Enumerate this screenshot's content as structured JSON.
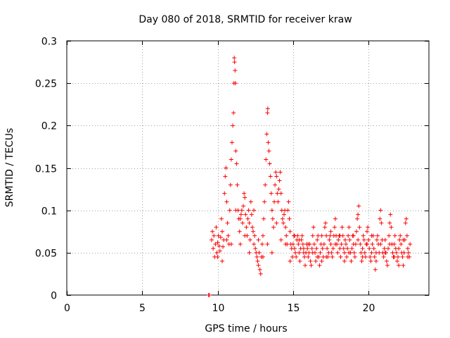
{
  "chart_data": {
    "type": "scatter",
    "title": "Day 080 of 2018, SRMTID for receiver kraw",
    "xlabel": "GPS time / hours",
    "ylabel": "SRMTID / TECUs",
    "xlim": [
      0,
      24
    ],
    "ylim": [
      0,
      0.3
    ],
    "x_ticks": [
      0,
      5,
      10,
      15,
      20
    ],
    "x_tick_labels": [
      "0",
      "5",
      "10",
      "15",
      "20"
    ],
    "y_ticks": [
      0,
      0.05,
      0.1,
      0.15,
      0.2,
      0.25,
      0.3
    ],
    "y_tick_labels": [
      "0",
      "0.05",
      "0.1",
      "0.15",
      "0.2",
      "0.25",
      "0.3"
    ],
    "grid": true,
    "marker": "plus",
    "series": [
      {
        "name": "SRMTID",
        "color": "#ff0000",
        "points": [
          [
            9.4,
            0.0
          ],
          [
            9.45,
            0.0
          ],
          [
            9.6,
            0.065
          ],
          [
            9.65,
            0.075
          ],
          [
            9.7,
            0.055
          ],
          [
            9.75,
            0.07
          ],
          [
            9.8,
            0.045
          ],
          [
            9.85,
            0.06
          ],
          [
            9.9,
            0.08
          ],
          [
            9.95,
            0.05
          ],
          [
            10.0,
            0.062
          ],
          [
            10.05,
            0.07
          ],
          [
            10.1,
            0.058
          ],
          [
            10.15,
            0.052
          ],
          [
            10.2,
            0.068
          ],
          [
            10.25,
            0.09
          ],
          [
            10.3,
            0.04
          ],
          [
            10.35,
            0.057
          ],
          [
            10.4,
            0.065
          ],
          [
            10.45,
            0.12
          ],
          [
            10.5,
            0.14
          ],
          [
            10.55,
            0.15
          ],
          [
            10.6,
            0.11
          ],
          [
            10.65,
            0.085
          ],
          [
            10.7,
            0.07
          ],
          [
            10.75,
            0.06
          ],
          [
            10.8,
            0.1
          ],
          [
            10.85,
            0.13
          ],
          [
            10.9,
            0.16
          ],
          [
            10.95,
            0.18
          ],
          [
            11.0,
            0.2
          ],
          [
            11.05,
            0.215
          ],
          [
            11.08,
            0.25
          ],
          [
            11.1,
            0.28
          ],
          [
            11.12,
            0.275
          ],
          [
            11.15,
            0.265
          ],
          [
            11.18,
            0.25
          ],
          [
            11.2,
            0.17
          ],
          [
            11.25,
            0.155
          ],
          [
            11.3,
            0.13
          ],
          [
            11.35,
            0.1
          ],
          [
            11.4,
            0.09
          ],
          [
            11.45,
            0.075
          ],
          [
            11.5,
            0.06
          ],
          [
            11.55,
            0.095
          ],
          [
            11.6,
            0.1
          ],
          [
            11.65,
            0.085
          ],
          [
            11.7,
            0.105
          ],
          [
            11.75,
            0.12
          ],
          [
            11.8,
            0.115
          ],
          [
            11.85,
            0.095
          ],
          [
            11.9,
            0.08
          ],
          [
            11.95,
            0.07
          ],
          [
            12.0,
            0.09
          ],
          [
            12.05,
            0.1
          ],
          [
            12.1,
            0.085
          ],
          [
            12.15,
            0.065
          ],
          [
            12.2,
            0.11
          ],
          [
            12.25,
            0.095
          ],
          [
            12.3,
            0.08
          ],
          [
            12.35,
            0.075
          ],
          [
            12.4,
            0.06
          ],
          [
            12.45,
            0.07
          ],
          [
            12.5,
            0.055
          ],
          [
            12.55,
            0.05
          ],
          [
            12.6,
            0.045
          ],
          [
            12.65,
            0.04
          ],
          [
            12.7,
            0.035
          ],
          [
            12.75,
            0.05
          ],
          [
            12.8,
            0.03
          ],
          [
            12.85,
            0.025
          ],
          [
            12.9,
            0.045
          ],
          [
            12.95,
            0.06
          ],
          [
            13.0,
            0.07
          ],
          [
            13.05,
            0.09
          ],
          [
            13.1,
            0.11
          ],
          [
            13.15,
            0.13
          ],
          [
            13.2,
            0.16
          ],
          [
            13.25,
            0.19
          ],
          [
            13.3,
            0.215
          ],
          [
            13.32,
            0.22
          ],
          [
            13.35,
            0.18
          ],
          [
            13.4,
            0.17
          ],
          [
            13.45,
            0.155
          ],
          [
            13.5,
            0.14
          ],
          [
            13.55,
            0.12
          ],
          [
            13.6,
            0.1
          ],
          [
            13.65,
            0.09
          ],
          [
            13.7,
            0.08
          ],
          [
            13.75,
            0.11
          ],
          [
            13.8,
            0.13
          ],
          [
            13.85,
            0.145
          ],
          [
            13.9,
            0.14
          ],
          [
            13.95,
            0.12
          ],
          [
            14.0,
            0.11
          ],
          [
            14.05,
            0.125
          ],
          [
            14.1,
            0.135
          ],
          [
            14.15,
            0.145
          ],
          [
            14.2,
            0.12
          ],
          [
            14.25,
            0.1
          ],
          [
            14.3,
            0.09
          ],
          [
            14.35,
            0.085
          ],
          [
            14.4,
            0.095
          ],
          [
            14.45,
            0.1
          ],
          [
            14.5,
            0.08
          ],
          [
            14.55,
            0.07
          ],
          [
            14.6,
            0.06
          ],
          [
            14.65,
            0.1
          ],
          [
            14.7,
            0.11
          ],
          [
            14.75,
            0.09
          ],
          [
            14.8,
            0.075
          ],
          [
            14.85,
            0.06
          ],
          [
            14.9,
            0.055
          ],
          [
            14.95,
            0.045
          ],
          [
            15.0,
            0.06
          ],
          [
            15.05,
            0.07
          ],
          [
            15.1,
            0.055
          ],
          [
            15.15,
            0.05
          ],
          [
            15.2,
            0.045
          ],
          [
            15.25,
            0.065
          ],
          [
            15.3,
            0.07
          ],
          [
            15.35,
            0.06
          ],
          [
            15.4,
            0.05
          ],
          [
            15.45,
            0.04
          ],
          [
            15.5,
            0.055
          ],
          [
            15.55,
            0.065
          ],
          [
            15.6,
            0.07
          ],
          [
            15.65,
            0.06
          ],
          [
            15.7,
            0.05
          ],
          [
            15.75,
            0.045
          ],
          [
            15.8,
            0.035
          ],
          [
            15.85,
            0.05
          ],
          [
            15.9,
            0.06
          ],
          [
            15.95,
            0.055
          ],
          [
            16.0,
            0.045
          ],
          [
            16.05,
            0.05
          ],
          [
            16.1,
            0.06
          ],
          [
            16.15,
            0.04
          ],
          [
            16.2,
            0.035
          ],
          [
            16.25,
            0.055
          ],
          [
            16.3,
            0.07
          ],
          [
            16.35,
            0.08
          ],
          [
            16.4,
            0.06
          ],
          [
            16.45,
            0.05
          ],
          [
            16.5,
            0.04
          ],
          [
            16.55,
            0.055
          ],
          [
            16.6,
            0.065
          ],
          [
            16.65,
            0.07
          ],
          [
            16.7,
            0.045
          ],
          [
            16.75,
            0.035
          ],
          [
            16.8,
            0.05
          ],
          [
            16.85,
            0.06
          ],
          [
            16.9,
            0.07
          ],
          [
            16.95,
            0.055
          ],
          [
            17.0,
            0.045
          ],
          [
            17.05,
            0.06
          ],
          [
            17.1,
            0.08
          ],
          [
            17.15,
            0.085
          ],
          [
            17.2,
            0.07
          ],
          [
            17.25,
            0.055
          ],
          [
            17.3,
            0.045
          ],
          [
            17.35,
            0.05
          ],
          [
            17.4,
            0.065
          ],
          [
            17.45,
            0.07
          ],
          [
            17.5,
            0.06
          ],
          [
            17.55,
            0.05
          ],
          [
            17.6,
            0.045
          ],
          [
            17.65,
            0.055
          ],
          [
            17.7,
            0.07
          ],
          [
            17.75,
            0.08
          ],
          [
            17.8,
            0.09
          ],
          [
            17.85,
            0.07
          ],
          [
            17.9,
            0.06
          ],
          [
            17.95,
            0.05
          ],
          [
            18.0,
            0.065
          ],
          [
            18.05,
            0.07
          ],
          [
            18.1,
            0.055
          ],
          [
            18.15,
            0.045
          ],
          [
            18.2,
            0.06
          ],
          [
            18.25,
            0.08
          ],
          [
            18.3,
            0.07
          ],
          [
            18.35,
            0.055
          ],
          [
            18.4,
            0.05
          ],
          [
            18.45,
            0.065
          ],
          [
            18.5,
            0.06
          ],
          [
            18.55,
            0.045
          ],
          [
            18.6,
            0.055
          ],
          [
            18.65,
            0.07
          ],
          [
            18.7,
            0.08
          ],
          [
            18.75,
            0.065
          ],
          [
            18.8,
            0.05
          ],
          [
            18.85,
            0.04
          ],
          [
            18.9,
            0.055
          ],
          [
            18.95,
            0.07
          ],
          [
            19.0,
            0.06
          ],
          [
            19.05,
            0.05
          ],
          [
            19.1,
            0.045
          ],
          [
            19.15,
            0.06
          ],
          [
            19.2,
            0.075
          ],
          [
            19.25,
            0.09
          ],
          [
            19.3,
            0.095
          ],
          [
            19.35,
            0.105
          ],
          [
            19.4,
            0.08
          ],
          [
            19.45,
            0.06
          ],
          [
            19.5,
            0.05
          ],
          [
            19.55,
            0.04
          ],
          [
            19.6,
            0.055
          ],
          [
            19.65,
            0.07
          ],
          [
            19.7,
            0.065
          ],
          [
            19.75,
            0.05
          ],
          [
            19.8,
            0.045
          ],
          [
            19.85,
            0.06
          ],
          [
            19.9,
            0.075
          ],
          [
            19.95,
            0.08
          ],
          [
            20.0,
            0.065
          ],
          [
            20.05,
            0.055
          ],
          [
            20.1,
            0.045
          ],
          [
            20.15,
            0.04
          ],
          [
            20.2,
            0.05
          ],
          [
            20.25,
            0.06
          ],
          [
            20.3,
            0.07
          ],
          [
            20.35,
            0.055
          ],
          [
            20.4,
            0.045
          ],
          [
            20.45,
            0.03
          ],
          [
            20.5,
            0.05
          ],
          [
            20.55,
            0.065
          ],
          [
            20.6,
            0.07
          ],
          [
            20.65,
            0.06
          ],
          [
            20.7,
            0.05
          ],
          [
            20.75,
            0.09
          ],
          [
            20.8,
            0.1
          ],
          [
            20.85,
            0.085
          ],
          [
            20.9,
            0.065
          ],
          [
            20.95,
            0.05
          ],
          [
            21.0,
            0.045
          ],
          [
            21.05,
            0.055
          ],
          [
            21.1,
            0.065
          ],
          [
            21.15,
            0.05
          ],
          [
            21.2,
            0.04
          ],
          [
            21.25,
            0.035
          ],
          [
            21.3,
            0.055
          ],
          [
            21.35,
            0.07
          ],
          [
            21.4,
            0.085
          ],
          [
            21.45,
            0.095
          ],
          [
            21.5,
            0.08
          ],
          [
            21.55,
            0.06
          ],
          [
            21.6,
            0.05
          ],
          [
            21.65,
            0.045
          ],
          [
            21.7,
            0.06
          ],
          [
            21.75,
            0.07
          ],
          [
            21.8,
            0.055
          ],
          [
            21.85,
            0.05
          ],
          [
            21.9,
            0.04
          ],
          [
            21.95,
            0.045
          ],
          [
            22.0,
            0.055
          ],
          [
            22.05,
            0.065
          ],
          [
            22.1,
            0.07
          ],
          [
            22.15,
            0.06
          ],
          [
            22.2,
            0.05
          ],
          [
            22.25,
            0.045
          ],
          [
            22.3,
            0.035
          ],
          [
            22.35,
            0.05
          ],
          [
            22.4,
            0.065
          ],
          [
            22.45,
            0.085
          ],
          [
            22.5,
            0.09
          ],
          [
            22.55,
            0.07
          ],
          [
            22.6,
            0.055
          ],
          [
            22.65,
            0.05
          ],
          [
            22.7,
            0.045
          ],
          [
            22.75,
            0.06
          ],
          [
            10.0,
            0.045
          ],
          [
            10.3,
            0.075
          ],
          [
            10.6,
            0.065
          ],
          [
            10.9,
            0.06
          ],
          [
            11.2,
            0.1
          ],
          [
            11.5,
            0.09
          ],
          [
            11.8,
            0.07
          ],
          [
            12.1,
            0.05
          ],
          [
            12.4,
            0.1
          ],
          [
            12.7,
            0.065
          ],
          [
            13.0,
            0.045
          ],
          [
            13.3,
            0.06
          ],
          [
            13.6,
            0.05
          ],
          [
            13.9,
            0.085
          ],
          [
            14.2,
            0.065
          ],
          [
            14.5,
            0.06
          ],
          [
            14.8,
            0.04
          ],
          [
            15.1,
            0.07
          ],
          [
            15.4,
            0.065
          ],
          [
            15.7,
            0.055
          ],
          [
            16.0,
            0.06
          ],
          [
            16.3,
            0.05
          ],
          [
            16.6,
            0.045
          ],
          [
            16.9,
            0.04
          ],
          [
            17.2,
            0.045
          ],
          [
            17.5,
            0.075
          ],
          [
            17.8,
            0.06
          ],
          [
            18.1,
            0.07
          ],
          [
            18.4,
            0.04
          ],
          [
            18.7,
            0.05
          ],
          [
            19.0,
            0.07
          ],
          [
            19.3,
            0.065
          ],
          [
            19.6,
            0.045
          ],
          [
            19.9,
            0.06
          ],
          [
            20.2,
            0.07
          ],
          [
            20.5,
            0.04
          ],
          [
            20.8,
            0.06
          ],
          [
            21.1,
            0.05
          ],
          [
            21.4,
            0.06
          ],
          [
            21.7,
            0.045
          ],
          [
            22.0,
            0.035
          ],
          [
            22.3,
            0.065
          ],
          [
            22.6,
            0.045
          ]
        ]
      }
    ]
  }
}
